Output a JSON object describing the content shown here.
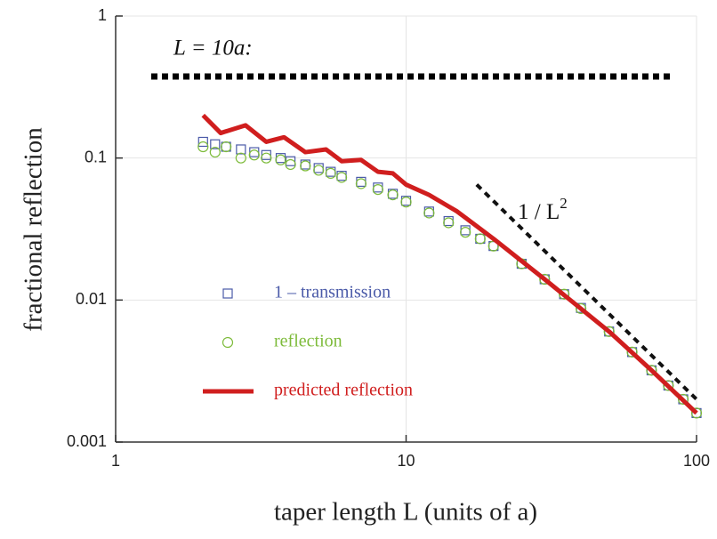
{
  "chart_data": {
    "type": "scatter",
    "x_label": "taper length L (units of a)",
    "y_label": "fractional reflection",
    "log_x": true,
    "log_y": true,
    "grid": true,
    "xlim": [
      1,
      100
    ],
    "xticks": [
      1,
      10,
      100
    ],
    "ylim": [
      0.001,
      1
    ],
    "yticks": [
      0.001,
      0.01,
      0.1,
      1
    ],
    "annotations": [
      {
        "text": "L = 10a:"
      },
      {
        "text": "1 / L",
        "superscript": "2"
      }
    ],
    "reference_line": {
      "x": [
        17.5,
        100
      ],
      "values": [
        0.065,
        0.002
      ],
      "color": "#111111"
    },
    "series": [
      {
        "name": "1 – transmission",
        "marker": "square",
        "color": "#4a5aa8",
        "x": [
          2,
          2.2,
          2.4,
          2.7,
          3,
          3.3,
          3.7,
          4,
          4.5,
          5,
          5.5,
          6,
          7,
          8,
          9,
          10,
          12,
          14,
          16,
          18,
          20,
          25,
          30,
          35,
          40,
          50,
          60,
          70,
          80,
          90,
          100
        ],
        "values": [
          0.13,
          0.125,
          0.12,
          0.115,
          0.11,
          0.105,
          0.1,
          0.095,
          0.09,
          0.085,
          0.08,
          0.075,
          0.068,
          0.062,
          0.056,
          0.05,
          0.042,
          0.036,
          0.031,
          0.027,
          0.024,
          0.018,
          0.014,
          0.011,
          0.0088,
          0.006,
          0.0043,
          0.0032,
          0.0025,
          0.002,
          0.0016
        ]
      },
      {
        "name": "reflection",
        "marker": "circle",
        "color": "#7dbb3a",
        "x": [
          2,
          2.2,
          2.4,
          2.7,
          3,
          3.3,
          3.7,
          4,
          4.5,
          5,
          5.5,
          6,
          7,
          8,
          9,
          10,
          12,
          14,
          16,
          18,
          20,
          25,
          30,
          35,
          40,
          50,
          60,
          70,
          80,
          90,
          100
        ],
        "values": [
          0.12,
          0.11,
          0.12,
          0.1,
          0.105,
          0.1,
          0.097,
          0.09,
          0.088,
          0.082,
          0.078,
          0.073,
          0.066,
          0.06,
          0.055,
          0.049,
          0.041,
          0.035,
          0.03,
          0.027,
          0.024,
          0.018,
          0.014,
          0.011,
          0.0087,
          0.006,
          0.0043,
          0.0032,
          0.0025,
          0.002,
          0.0016
        ]
      },
      {
        "name": "predicted reflection",
        "marker": "line",
        "color": "#d01e1e",
        "x": [
          2,
          2.3,
          2.8,
          3.3,
          3.8,
          4.5,
          5.3,
          6,
          7,
          8,
          9,
          10,
          12,
          15,
          20,
          30,
          50,
          70,
          100
        ],
        "values": [
          0.2,
          0.15,
          0.17,
          0.13,
          0.14,
          0.11,
          0.115,
          0.095,
          0.097,
          0.08,
          0.078,
          0.065,
          0.055,
          0.042,
          0.027,
          0.014,
          0.006,
          0.0032,
          0.0016
        ]
      }
    ]
  }
}
